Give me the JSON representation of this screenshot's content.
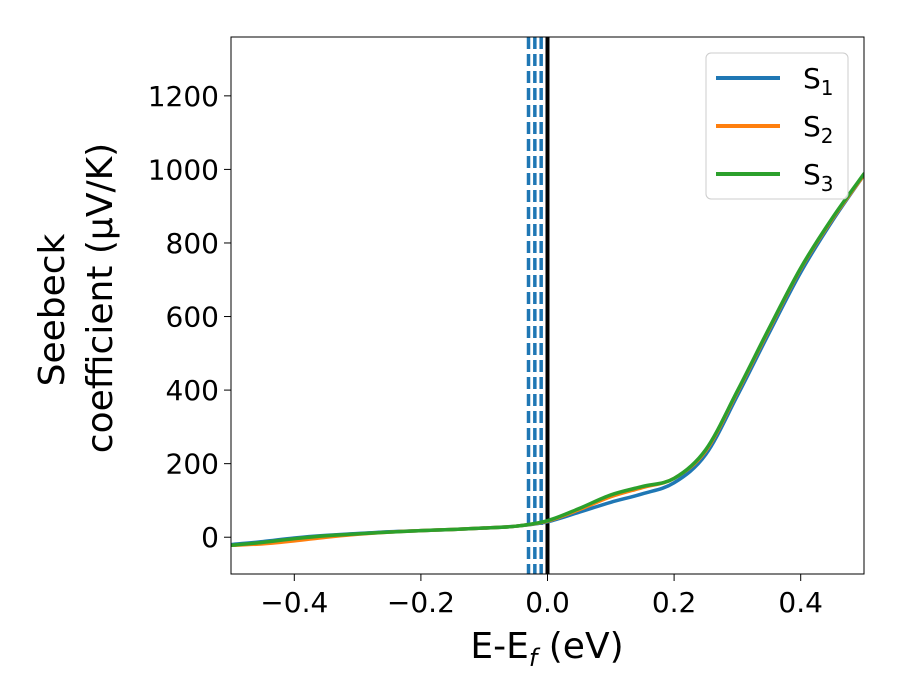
{
  "chart_data": {
    "type": "line",
    "xlabel": "E-E",
    "xlabel_sub": "f",
    "xlabel_unit": " (eV)",
    "ylabel_line1": "Seebeck",
    "ylabel_line2": "coefficient  (μV/K)",
    "xlim": [
      -0.5,
      0.5
    ],
    "ylim": [
      -100,
      1360
    ],
    "xticks": [
      -0.4,
      -0.2,
      0.0,
      0.2,
      0.4
    ],
    "xtick_labels": [
      "−0.4",
      "−0.2",
      "0.0",
      "0.2",
      "0.4"
    ],
    "yticks": [
      0,
      200,
      400,
      600,
      800,
      1000,
      1200
    ],
    "ytick_labels": [
      "0",
      "200",
      "400",
      "600",
      "800",
      "1000",
      "1200"
    ],
    "grid": false,
    "legend_position": "top-right",
    "vertical_lines": [
      {
        "x": -0.03,
        "style": "dashed",
        "color": "#1f77b4"
      },
      {
        "x": -0.02,
        "style": "dashed",
        "color": "#1f77b4"
      },
      {
        "x": -0.01,
        "style": "dashed",
        "color": "#1f77b4"
      },
      {
        "x": 0.0,
        "style": "solid",
        "color": "#000000"
      }
    ],
    "series": [
      {
        "name": "S",
        "sub": "1",
        "color": "#1f77b4",
        "x": [
          -0.5,
          -0.45,
          -0.4,
          -0.35,
          -0.3,
          -0.25,
          -0.2,
          -0.15,
          -0.1,
          -0.05,
          0.0,
          0.05,
          0.1,
          0.15,
          0.2,
          0.25,
          0.3,
          0.35,
          0.4,
          0.45,
          0.5
        ],
        "y": [
          -20,
          -12,
          -2,
          5,
          10,
          15,
          18,
          21,
          25,
          30,
          42,
          68,
          95,
          118,
          148,
          225,
          385,
          555,
          720,
          860,
          985
        ]
      },
      {
        "name": "S",
        "sub": "2",
        "color": "#ff7f0e",
        "x": [
          -0.5,
          -0.45,
          -0.4,
          -0.35,
          -0.3,
          -0.25,
          -0.2,
          -0.15,
          -0.1,
          -0.05,
          0.0,
          0.05,
          0.1,
          0.15,
          0.2,
          0.25,
          0.3,
          0.35,
          0.4,
          0.45,
          0.5
        ],
        "y": [
          -22,
          -18,
          -10,
          0,
          8,
          14,
          18,
          21,
          25,
          30,
          44,
          75,
          110,
          135,
          160,
          235,
          395,
          565,
          730,
          865,
          985
        ]
      },
      {
        "name": "S",
        "sub": "3",
        "color": "#2ca02c",
        "x": [
          -0.5,
          -0.45,
          -0.4,
          -0.35,
          -0.3,
          -0.25,
          -0.2,
          -0.15,
          -0.1,
          -0.05,
          0.0,
          0.05,
          0.1,
          0.15,
          0.2,
          0.25,
          0.3,
          0.35,
          0.4,
          0.45,
          0.5
        ],
        "y": [
          -22,
          -14,
          -4,
          4,
          9,
          14,
          18,
          21,
          25,
          30,
          45,
          78,
          115,
          138,
          160,
          238,
          398,
          568,
          732,
          868,
          988
        ]
      }
    ]
  }
}
